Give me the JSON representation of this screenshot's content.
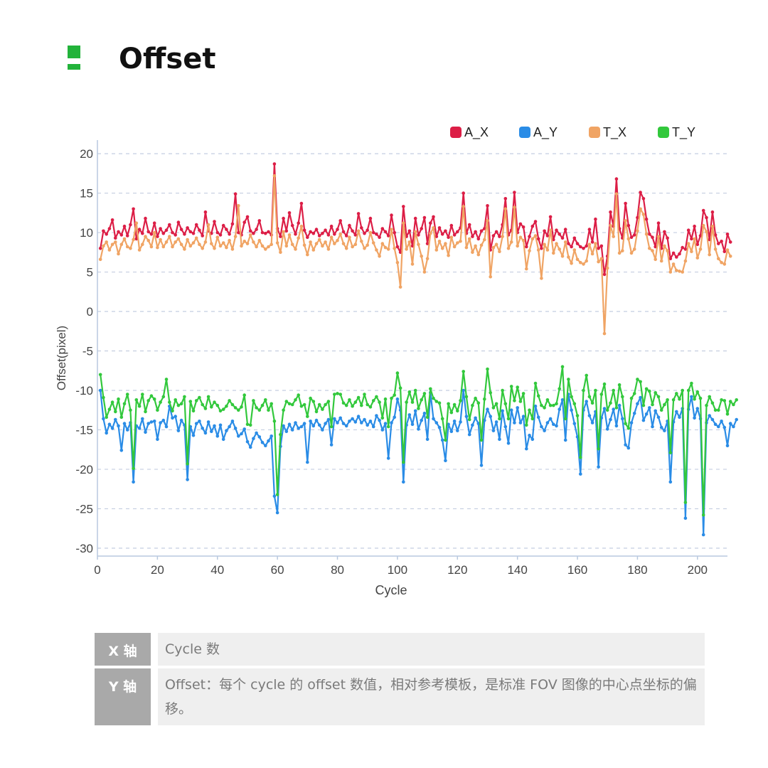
{
  "header": {
    "title": "Offset",
    "accent_color": "#22b33a",
    "mark_icon": "square-bullet-icon"
  },
  "chart_data": {
    "type": "line",
    "title": "",
    "xlabel": "Cycle",
    "ylabel": "Offset(pixel)",
    "xlim": [
      0,
      210
    ],
    "ylim": [
      -31,
      21
    ],
    "x_ticks": [
      0,
      20,
      40,
      60,
      80,
      100,
      120,
      140,
      160,
      180,
      200
    ],
    "y_ticks": [
      20,
      15,
      10,
      5,
      0,
      -5,
      -10,
      -15,
      -20,
      -25,
      -30
    ],
    "grid": "horizontal dashed",
    "legend_position": "top-right",
    "x_start": 1,
    "x_step": 1,
    "series": [
      {
        "name": "A_X",
        "color": "#dc1e46",
        "values": [
          8.0,
          10.2,
          9.8,
          10.5,
          11.6,
          9.3,
          10.1,
          9.7,
          10.8,
          9.6,
          11.0,
          13.0,
          9.2,
          10.4,
          9.9,
          11.8,
          10.1,
          9.8,
          11.2,
          9.5,
          10.5,
          9.9,
          10.3,
          11.0,
          10.0,
          9.7,
          11.3,
          10.4,
          9.8,
          10.6,
          10.1,
          9.9,
          11.0,
          10.3,
          9.6,
          12.6,
          10.2,
          9.9,
          11.4,
          10.0,
          9.7,
          10.9,
          10.4,
          9.8,
          11.1,
          14.9,
          10.0,
          9.7,
          11.3,
          12.0,
          10.2,
          9.9,
          10.4,
          11.5,
          10.0,
          9.9,
          10.1,
          9.7,
          18.7,
          10.5,
          9.5,
          11.8,
          10.2,
          12.5,
          10.9,
          9.8,
          11.2,
          13.7,
          10.3,
          9.4,
          10.1,
          9.9,
          10.4,
          9.6,
          9.9,
          10.3,
          9.7,
          10.8,
          9.8,
          10.4,
          11.5,
          10.1,
          9.6,
          10.9,
          10.2,
          9.7,
          12.4,
          10.6,
          9.9,
          10.3,
          11.8,
          10.0,
          9.8,
          9.4,
          10.5,
          10.1,
          9.6,
          12.2,
          10.0,
          8.2,
          7.5,
          13.3,
          9.5,
          10.2,
          8.3,
          11.8,
          9.7,
          10.5,
          11.9,
          8.6,
          11.2,
          12.0,
          9.5,
          10.6,
          9.8,
          10.2,
          9.4,
          10.9,
          9.7,
          10.1,
          10.6,
          15.0,
          9.9,
          11.0,
          9.5,
          10.1,
          9.2,
          10.2,
          10.5,
          13.4,
          7.8,
          9.6,
          10.1,
          9.5,
          11.0,
          14.3,
          9.7,
          10.3,
          15.1,
          10.0,
          11.1,
          10.7,
          8.2,
          9.5,
          10.8,
          11.4,
          9.2,
          8.0,
          10.2,
          9.6,
          12.0,
          9.1,
          10.3,
          9.8,
          9.3,
          10.4,
          8.6,
          8.2,
          9.3,
          8.6,
          8.2,
          8.0,
          8.3,
          10.4,
          8.8,
          11.7,
          8.0,
          8.3,
          4.7,
          7.0,
          12.6,
          10.8,
          16.8,
          10.5,
          9.3,
          13.7,
          10.9,
          9.4,
          9.7,
          11.9,
          15.1,
          14.3,
          11.7,
          9.8,
          9.4,
          8.2,
          11.2,
          8.0,
          10.1,
          9.3,
          6.7,
          7.4,
          6.9,
          7.3,
          8.1,
          7.9,
          10.3,
          9.2,
          10.8,
          8.5,
          9.6,
          12.8,
          11.9,
          9.1,
          12.6,
          9.7,
          8.6,
          8.9,
          7.6,
          9.8,
          8.8
        ]
      },
      {
        "name": "A_Y",
        "color": "#2a8ce6",
        "values": [
          -10.0,
          -13.6,
          -15.4,
          -14.3,
          -14.8,
          -13.7,
          -14.5,
          -17.6,
          -14.2,
          -15.0,
          -14.1,
          -21.6,
          -14.5,
          -14.8,
          -13.6,
          -15.3,
          -14.2,
          -14.0,
          -13.9,
          -16.2,
          -14.1,
          -13.8,
          -14.6,
          -12.0,
          -13.5,
          -13.3,
          -15.1,
          -13.8,
          -14.4,
          -21.3,
          -14.6,
          -15.7,
          -14.2,
          -13.9,
          -14.8,
          -15.4,
          -14.0,
          -15.2,
          -14.5,
          -15.8,
          -14.4,
          -16.2,
          -15.1,
          -14.6,
          -13.9,
          -14.8,
          -15.8,
          -15.5,
          -14.9,
          -16.5,
          -17.2,
          -16.1,
          -15.4,
          -15.9,
          -16.6,
          -17.0,
          -16.4,
          -15.8,
          -23.4,
          -25.5,
          -17.1,
          -14.5,
          -15.2,
          -14.3,
          -15.0,
          -14.1,
          -14.8,
          -14.6,
          -14.2,
          -19.1,
          -13.9,
          -14.5,
          -13.8,
          -14.4,
          -15.0,
          -14.2,
          -13.7,
          -16.9,
          -13.6,
          -14.1,
          -13.5,
          -14.2,
          -14.5,
          -13.9,
          -13.6,
          -14.0,
          -13.3,
          -14.1,
          -13.7,
          -14.4,
          -13.9,
          -14.6,
          -13.2,
          -13.8,
          -15.0,
          -14.2,
          -18.6,
          -14.1,
          -13.4,
          -11.1,
          -12.5,
          -21.6,
          -14.4,
          -13.1,
          -14.3,
          -12.6,
          -14.9,
          -13.8,
          -12.9,
          -16.2,
          -10.3,
          -13.6,
          -14.1,
          -14.7,
          -16.3,
          -18.9,
          -14.3,
          -15.2,
          -13.9,
          -15.1,
          -14.0,
          -10.0,
          -13.3,
          -15.6,
          -14.4,
          -13.5,
          -14.2,
          -19.5,
          -13.8,
          -12.4,
          -13.3,
          -15.1,
          -14.0,
          -16.2,
          -12.6,
          -14.6,
          -16.7,
          -12.5,
          -14.1,
          -12.2,
          -14.1,
          -13.3,
          -17.4,
          -15.7,
          -16.2,
          -12.0,
          -13.4,
          -14.6,
          -15.1,
          -14.1,
          -13.6,
          -14.3,
          -14.5,
          -12.4,
          -11.2,
          -16.3,
          -10.5,
          -12.5,
          -14.2,
          -15.9,
          -20.6,
          -12.5,
          -11.4,
          -13.2,
          -14.1,
          -12.7,
          -19.7,
          -13.5,
          -12.3,
          -14.9,
          -13.7,
          -12.4,
          -14.5,
          -11.9,
          -13.6,
          -16.9,
          -17.3,
          -14.1,
          -12.9,
          -11.7,
          -10.9,
          -13.8,
          -13.0,
          -12.2,
          -14.6,
          -12.6,
          -13.4,
          -14.7,
          -15.1,
          -13.9,
          -21.6,
          -14.0,
          -12.7,
          -13.4,
          -12.3,
          -26.2,
          -12.4,
          -10.8,
          -13.5,
          -12.3,
          -13.6,
          -28.3,
          -14.1,
          -13.2,
          -13.7,
          -14.3,
          -14.6,
          -13.9,
          -14.7,
          -17.0,
          -14.2,
          -14.6,
          -13.7
        ]
      },
      {
        "name": "T_X",
        "color": "#f0a464",
        "values": [
          6.6,
          8.3,
          8.8,
          7.8,
          8.5,
          8.8,
          7.3,
          8.5,
          9.2,
          8.2,
          8.0,
          9.1,
          11.2,
          7.8,
          8.5,
          9.5,
          9.0,
          8.2,
          10.0,
          8.1,
          9.1,
          8.2,
          8.8,
          9.5,
          8.2,
          8.8,
          9.2,
          8.5,
          7.9,
          9.1,
          8.3,
          8.7,
          9.3,
          8.5,
          8.0,
          8.8,
          11.0,
          8.6,
          8.0,
          9.4,
          8.3,
          8.7,
          8.1,
          9.0,
          7.9,
          9.5,
          13.4,
          8.3,
          8.9,
          8.6,
          9.7,
          8.8,
          8.2,
          9.0,
          8.3,
          7.9,
          8.2,
          8.5,
          17.2,
          8.7,
          7.5,
          10.1,
          8.3,
          9.7,
          8.5,
          7.9,
          9.3,
          10.8,
          8.4,
          7.2,
          8.8,
          7.8,
          8.6,
          9.1,
          8.3,
          8.8,
          7.9,
          9.4,
          8.6,
          9.0,
          9.8,
          8.6,
          8.0,
          9.4,
          8.2,
          8.5,
          10.2,
          8.9,
          8.0,
          8.4,
          10.0,
          8.7,
          7.8,
          7.0,
          8.6,
          8.1,
          7.9,
          10.4,
          8.0,
          6.2,
          3.1,
          11.2,
          7.9,
          8.8,
          6.0,
          10.1,
          8.5,
          7.0,
          5.0,
          6.7,
          9.9,
          10.6,
          7.8,
          8.9,
          8.0,
          8.6,
          7.1,
          9.4,
          8.2,
          8.7,
          8.9,
          13.3,
          8.1,
          9.2,
          7.5,
          8.3,
          7.2,
          8.4,
          9.1,
          11.5,
          4.4,
          8.1,
          8.5,
          7.6,
          9.5,
          13.0,
          8.0,
          8.8,
          13.2,
          8.3,
          9.4,
          9.0,
          5.4,
          7.7,
          9.2,
          9.6,
          7.8,
          4.2,
          8.5,
          7.8,
          10.3,
          7.4,
          8.6,
          7.9,
          7.0,
          8.8,
          6.9,
          6.1,
          7.8,
          6.6,
          6.2,
          6.0,
          6.4,
          8.5,
          7.3,
          8.6,
          6.3,
          6.7,
          -2.8,
          5.5,
          10.9,
          9.5,
          14.9,
          7.4,
          7.7,
          11.5,
          9.2,
          7.4,
          7.9,
          10.2,
          13.0,
          12.3,
          9.8,
          8.0,
          7.7,
          6.6,
          9.5,
          6.4,
          8.3,
          7.7,
          5.0,
          6.0,
          5.2,
          5.1,
          5.0,
          6.4,
          8.6,
          7.6,
          9.2,
          6.8,
          7.9,
          10.9,
          10.1,
          7.2,
          10.8,
          7.9,
          6.7,
          6.2,
          6.0,
          7.8,
          7.0
        ]
      },
      {
        "name": "T_Y",
        "color": "#32c83c",
        "values": [
          -8.0,
          -10.9,
          -13.4,
          -12.4,
          -11.5,
          -12.7,
          -11.1,
          -13.4,
          -11.7,
          -10.5,
          -12.5,
          -19.9,
          -11.2,
          -12.0,
          -10.5,
          -12.7,
          -11.3,
          -10.7,
          -11.1,
          -12.5,
          -11.5,
          -10.8,
          -8.6,
          -11.5,
          -12.6,
          -11.2,
          -11.9,
          -11.7,
          -10.8,
          -19.3,
          -11.4,
          -12.6,
          -11.3,
          -10.9,
          -11.8,
          -12.3,
          -10.8,
          -12.1,
          -11.5,
          -11.9,
          -12.6,
          -12.4,
          -12.0,
          -11.3,
          -11.8,
          -12.2,
          -12.5,
          -12.1,
          -10.6,
          -14.3,
          -14.4,
          -11.3,
          -12.2,
          -12.5,
          -11.9,
          -11.2,
          -12.5,
          -11.7,
          -13.9,
          -23.2,
          -15.6,
          -12.5,
          -11.4,
          -11.7,
          -11.8,
          -11.2,
          -10.6,
          -12.0,
          -11.8,
          -13.3,
          -11.0,
          -11.4,
          -12.7,
          -11.8,
          -12.4,
          -11.8,
          -11.4,
          -14.6,
          -10.5,
          -10.4,
          -10.5,
          -11.6,
          -11.9,
          -11.2,
          -12.0,
          -11.5,
          -10.9,
          -11.9,
          -10.5,
          -11.8,
          -12.1,
          -11.3,
          -10.8,
          -11.5,
          -13.5,
          -11.1,
          -14.6,
          -11.0,
          -10.6,
          -7.8,
          -9.7,
          -19.1,
          -11.5,
          -10.2,
          -11.5,
          -10.0,
          -12.3,
          -11.2,
          -10.4,
          -13.4,
          -9.8,
          -11.0,
          -11.4,
          -11.6,
          -13.6,
          -16.3,
          -11.7,
          -12.8,
          -11.8,
          -12.6,
          -11.3,
          -7.6,
          -10.8,
          -13.7,
          -11.9,
          -11.0,
          -11.6,
          -16.3,
          -11.1,
          -7.3,
          -10.3,
          -12.2,
          -11.7,
          -13.6,
          -10.0,
          -11.7,
          -13.6,
          -9.5,
          -11.3,
          -9.6,
          -11.4,
          -10.4,
          -14.4,
          -12.5,
          -13.6,
          -9.1,
          -10.7,
          -11.9,
          -12.2,
          -11.2,
          -11.9,
          -11.9,
          -11.7,
          -9.8,
          -7.0,
          -13.6,
          -8.6,
          -10.8,
          -11.7,
          -13.2,
          -18.5,
          -10.0,
          -8.1,
          -10.8,
          -11.6,
          -10.0,
          -17.4,
          -10.5,
          -9.2,
          -12.5,
          -11.6,
          -10.0,
          -12.2,
          -9.3,
          -10.8,
          -14.2,
          -14.8,
          -11.0,
          -10.4,
          -8.6,
          -8.9,
          -11.9,
          -9.8,
          -10.1,
          -11.8,
          -10.3,
          -10.8,
          -12.5,
          -11.8,
          -11.2,
          -17.9,
          -11.2,
          -10.4,
          -11.1,
          -10.0,
          -24.2,
          -10.0,
          -9.1,
          -11.1,
          -10.2,
          -11.0,
          -25.8,
          -11.9,
          -10.8,
          -11.6,
          -12.5,
          -12.5,
          -11.2,
          -11.3,
          -13.0,
          -11.4,
          -11.8,
          -11.2
        ]
      }
    ]
  },
  "info_table": {
    "rows": [
      {
        "head": "X 轴",
        "body": "Cycle 数"
      },
      {
        "head": "Y 轴",
        "body": "Offset：每个 cycle 的 offset 数值，相对参考模板，是标准 FOV 图像的中心点坐标的偏移。"
      }
    ]
  }
}
